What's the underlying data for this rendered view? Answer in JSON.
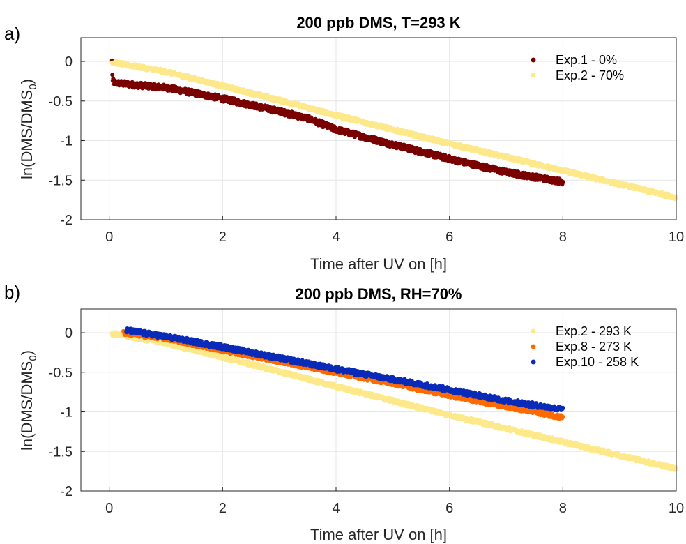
{
  "chart_data": [
    {
      "panel_label": "a)",
      "type": "scatter",
      "title": "200 ppb DMS, T=293 K",
      "xlabel": "Time after UV on [h]",
      "ylabel_main": "ln(DMS/DMS",
      "ylabel_sub": "0",
      "ylabel_end": ")",
      "xlim": [
        -0.5,
        10
      ],
      "ylim": [
        -2,
        0.3
      ],
      "xticks": [
        0,
        2,
        4,
        6,
        8,
        10
      ],
      "xtick_labels": [
        "0",
        "2",
        "4",
        "6",
        "8",
        "10"
      ],
      "yticks": [
        0,
        -0.5,
        -1,
        -1.5,
        -2
      ],
      "ytick_labels": [
        "0",
        "-0.5",
        "-1",
        "-1.5",
        "-2"
      ],
      "grid": true,
      "legend_position": "top-right",
      "series": [
        {
          "name": "Exp.1 - 0%",
          "color": "#7a0000",
          "x_start": 0.05,
          "x_end": 8.0,
          "points": [
            [
              0.05,
              0.0
            ],
            [
              0.06,
              -0.25
            ],
            [
              0.1,
              -0.27
            ],
            [
              0.5,
              -0.3
            ],
            [
              1.0,
              -0.33
            ],
            [
              2.0,
              -0.47
            ],
            [
              3.0,
              -0.63
            ],
            [
              3.5,
              -0.72
            ],
            [
              4.0,
              -0.86
            ],
            [
              5.0,
              -1.05
            ],
            [
              6.0,
              -1.23
            ],
            [
              7.0,
              -1.4
            ],
            [
              7.5,
              -1.46
            ],
            [
              8.0,
              -1.52
            ]
          ],
          "noise": 0.035
        },
        {
          "name": "Exp.2 - 70%",
          "color": "#fde98a",
          "x_start": 0.05,
          "x_end": 10.0,
          "points": [
            [
              0.05,
              -0.01
            ],
            [
              1.0,
              -0.13
            ],
            [
              2.0,
              -0.31
            ],
            [
              3.0,
              -0.49
            ],
            [
              4.0,
              -0.68
            ],
            [
              5.0,
              -0.86
            ],
            [
              6.0,
              -1.04
            ],
            [
              7.0,
              -1.21
            ],
            [
              8.0,
              -1.38
            ],
            [
              9.0,
              -1.55
            ],
            [
              10.0,
              -1.72
            ]
          ],
          "noise": 0.025
        }
      ]
    },
    {
      "panel_label": "b)",
      "type": "scatter",
      "title": "200 ppb DMS, RH=70%",
      "xlabel": "Time after UV on [h]",
      "ylabel_main": "ln(DMS/DMS",
      "ylabel_sub": "0",
      "ylabel_end": ")",
      "xlim": [
        -0.5,
        10
      ],
      "ylim": [
        -2,
        0.3
      ],
      "xticks": [
        0,
        2,
        4,
        6,
        8,
        10
      ],
      "xtick_labels": [
        "0",
        "2",
        "4",
        "6",
        "8",
        "10"
      ],
      "yticks": [
        0,
        -0.5,
        -1,
        -1.5,
        -2
      ],
      "ytick_labels": [
        "0",
        "-0.5",
        "-1",
        "-1.5",
        "-2"
      ],
      "grid": true,
      "legend_position": "top-right",
      "series": [
        {
          "name": "Exp.2 - 293 K",
          "color": "#fde98a",
          "x_start": 0.05,
          "x_end": 10.0,
          "points": [
            [
              0.05,
              -0.01
            ],
            [
              1.0,
              -0.13
            ],
            [
              2.0,
              -0.31
            ],
            [
              3.0,
              -0.49
            ],
            [
              4.0,
              -0.68
            ],
            [
              5.0,
              -0.86
            ],
            [
              6.0,
              -1.04
            ],
            [
              7.0,
              -1.21
            ],
            [
              8.0,
              -1.38
            ],
            [
              9.0,
              -1.55
            ],
            [
              10.0,
              -1.72
            ]
          ],
          "noise": 0.025
        },
        {
          "name": "Exp.8 - 273 K",
          "color": "#ff6a00",
          "x_start": 0.25,
          "x_end": 8.0,
          "points": [
            [
              0.25,
              0.0
            ],
            [
              1.0,
              -0.07
            ],
            [
              2.0,
              -0.22
            ],
            [
              3.0,
              -0.36
            ],
            [
              4.0,
              -0.5
            ],
            [
              5.0,
              -0.64
            ],
            [
              6.0,
              -0.79
            ],
            [
              7.0,
              -0.93
            ],
            [
              8.0,
              -1.07
            ]
          ],
          "noise": 0.028
        },
        {
          "name": "Exp.10 - 258 K",
          "color": "#0a2bb8",
          "x_start": 0.3,
          "x_end": 8.0,
          "points": [
            [
              0.3,
              0.03
            ],
            [
              1.0,
              -0.05
            ],
            [
              2.0,
              -0.18
            ],
            [
              3.0,
              -0.32
            ],
            [
              4.0,
              -0.46
            ],
            [
              5.0,
              -0.59
            ],
            [
              6.0,
              -0.72
            ],
            [
              7.0,
              -0.86
            ],
            [
              8.0,
              -0.97
            ]
          ],
          "noise": 0.03
        }
      ]
    }
  ]
}
